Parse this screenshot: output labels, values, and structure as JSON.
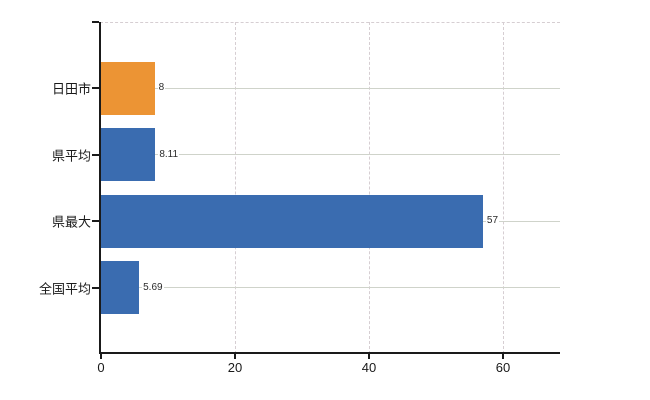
{
  "chart": {
    "background_color": "#ffffff",
    "title": "",
    "chart_data": {
      "type": "bar",
      "orientation": "horizontal",
      "categories": [
        "日田市",
        "県平均",
        "県最大",
        "全国平均"
      ],
      "values": [
        8,
        8.11,
        57,
        5.69
      ],
      "value_labels": [
        "8",
        "8.11",
        "57",
        "5.69"
      ],
      "bar_colors": [
        "#EC9434",
        "#3A6CB0",
        "#3A6CB0",
        "#3A6CB0"
      ],
      "xlabel": "",
      "ylabel": "",
      "xlim": [
        0,
        68.6
      ],
      "xticks": [
        0,
        20,
        40,
        60
      ],
      "xtick_labels": [
        "0",
        "20",
        "40",
        "60"
      ],
      "grid": "vertical dashed gridlines at x ticks; solid light horizontal line at each category center; dashed top plot border",
      "legend": "none"
    },
    "colors": {
      "bar_orange": "#EC9434",
      "bar_blue": "#3A6CB0",
      "axis": "#1a1a1a",
      "dashed_gridline": "#d6ced2",
      "category_line": "#cfd3ca",
      "tick_label_text": "#1a1a1a",
      "value_label_text": "#2b2b2b"
    }
  }
}
